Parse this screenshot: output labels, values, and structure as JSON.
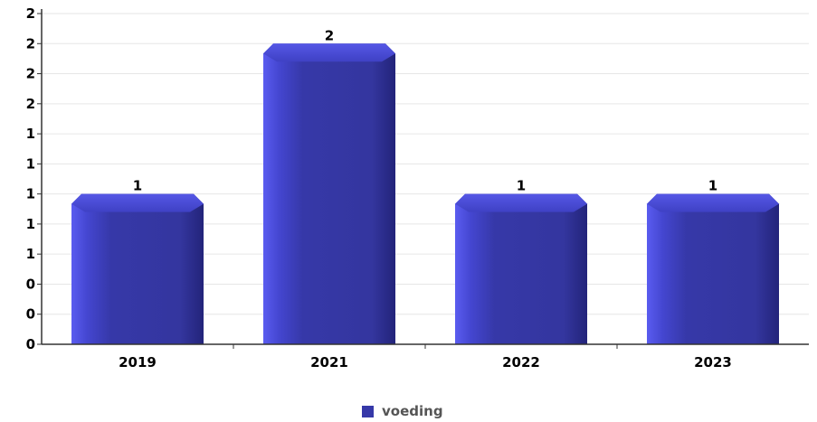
{
  "chart_data": {
    "type": "bar",
    "categories": [
      "2019",
      "2021",
      "2022",
      "2023"
    ],
    "series": [
      {
        "name": "voeding",
        "values": [
          1,
          2,
          1,
          1
        ],
        "color": "#3638a8"
      }
    ],
    "data_labels": [
      "1",
      "2",
      "1",
      "1"
    ],
    "y_tick_labels": [
      "0",
      "0",
      "0",
      "1",
      "1",
      "1",
      "1",
      "1",
      "2",
      "2",
      "2",
      "2"
    ],
    "ylim": [
      0,
      2.2
    ],
    "ytick_step": 0.2,
    "grid": true,
    "legend_position": "bottom-center",
    "title": "",
    "xlabel": "",
    "ylabel": ""
  }
}
